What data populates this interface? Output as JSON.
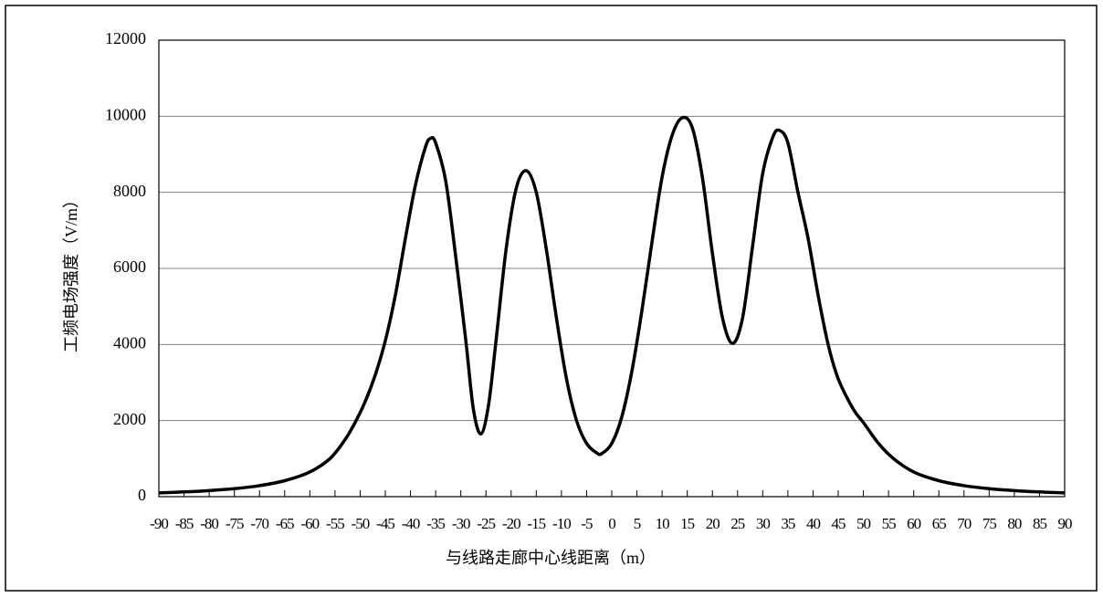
{
  "chart_data": {
    "type": "line",
    "xlabel": "与线路走廊中心线距离（m）",
    "ylabel": "工频电场强度（V/m）",
    "x": [
      -90,
      -85,
      -80,
      -75,
      -70,
      -65,
      -60,
      -56,
      -53,
      -51,
      -49,
      -47,
      -45,
      -43,
      -41,
      -39,
      -37,
      -36,
      -35,
      -33,
      -31,
      -29,
      -27.5,
      -26,
      -24.5,
      -23,
      -21,
      -19,
      -17,
      -15,
      -13,
      -11,
      -9,
      -7,
      -5,
      -3,
      -2,
      0,
      2,
      4,
      6,
      8,
      10,
      12,
      14,
      16,
      18,
      20,
      22,
      24,
      26,
      28,
      30,
      32,
      33.3,
      35,
      37,
      39,
      41,
      43,
      45,
      48,
      50,
      53,
      56,
      60,
      65,
      70,
      75,
      80,
      85,
      90
    ],
    "series": [
      {
        "name": "工频电场强度",
        "color": "#000000",
        "values": [
          100,
          125,
          160,
          210,
          290,
          420,
          650,
          1000,
          1500,
          1950,
          2500,
          3200,
          4100,
          5300,
          6800,
          8200,
          9200,
          9420,
          9300,
          8300,
          6300,
          4100,
          2300,
          1650,
          2400,
          4100,
          6500,
          8100,
          8570,
          8000,
          6500,
          4700,
          3100,
          2000,
          1400,
          1150,
          1130,
          1400,
          2100,
          3300,
          4900,
          6700,
          8400,
          9500,
          9960,
          9700,
          8400,
          6400,
          4700,
          4030,
          4700,
          6600,
          8500,
          9450,
          9630,
          9300,
          8000,
          6800,
          5300,
          4000,
          3100,
          2300,
          1950,
          1400,
          1000,
          650,
          420,
          290,
          210,
          160,
          125,
          100
        ]
      }
    ],
    "xlim": [
      -90,
      90
    ],
    "xticks": [
      -90,
      -85,
      -80,
      -75,
      -70,
      -65,
      -60,
      -55,
      -50,
      -45,
      -40,
      -35,
      -30,
      -25,
      -20,
      -15,
      -10,
      -5,
      0,
      5,
      10,
      15,
      20,
      25,
      30,
      35,
      40,
      45,
      50,
      55,
      60,
      65,
      70,
      75,
      80,
      85,
      90
    ],
    "ylim": [
      0,
      12000
    ],
    "yticks": [
      0,
      2000,
      4000,
      6000,
      8000,
      10000,
      12000
    ],
    "grid": true
  }
}
